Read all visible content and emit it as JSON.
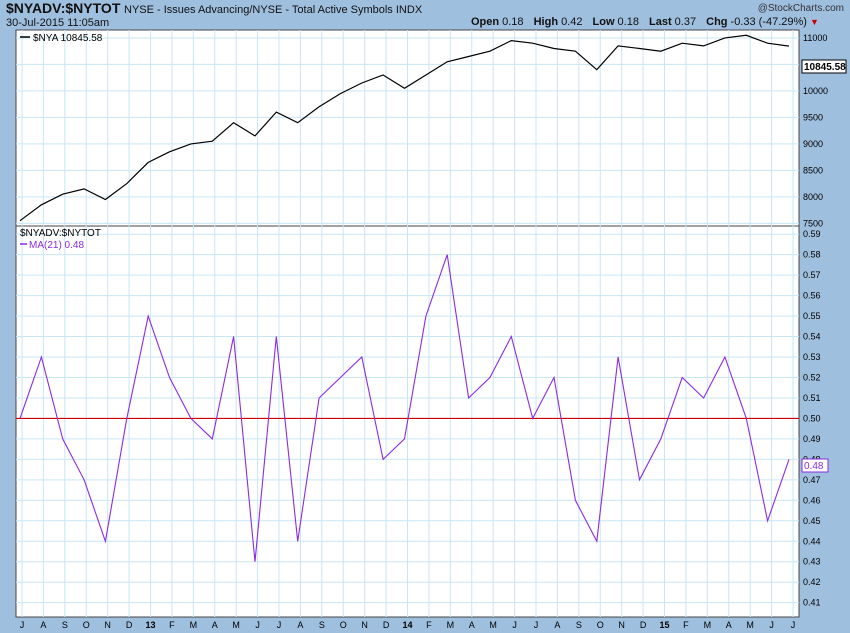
{
  "header": {
    "ticker": "$NYADV:$NYTOT",
    "description": "NYSE - Issues Advancing/NYSE - Total Active Symbols",
    "exchange": "INDX",
    "date": "30-Jul-2015 11:05am",
    "brand": "@StockCharts.com",
    "open_label": "Open",
    "open": "0.18",
    "high_label": "High",
    "high": "0.42",
    "low_label": "Low",
    "low": "0.18",
    "last_label": "Last",
    "last": "0.37",
    "chg_label": "Chg",
    "chg": "-0.33 (-47.29%)"
  },
  "colors": {
    "background": "#9fbfdf",
    "panel": "#ffffff",
    "grid": "#c9e6f5",
    "nya_line": "#000000",
    "ma_line": "#8a2be2",
    "midline": "#cc0000"
  },
  "chart_data": [
    {
      "type": "line",
      "panel": "top",
      "legend": "$NYA 10845.58",
      "series": [
        {
          "name": "$NYA",
          "last_value": "10845.58",
          "points": [
            [
              "2012-07",
              7550
            ],
            [
              "2012-08",
              7850
            ],
            [
              "2012-09",
              8050
            ],
            [
              "2012-10",
              8150
            ],
            [
              "2012-11",
              7950
            ],
            [
              "2012-12",
              8250
            ],
            [
              "2013-01",
              8650
            ],
            [
              "2013-02",
              8850
            ],
            [
              "2013-03",
              9000
            ],
            [
              "2013-04",
              9050
            ],
            [
              "2013-05",
              9400
            ],
            [
              "2013-06",
              9150
            ],
            [
              "2013-07",
              9600
            ],
            [
              "2013-08",
              9400
            ],
            [
              "2013-09",
              9700
            ],
            [
              "2013-10",
              9950
            ],
            [
              "2013-11",
              10150
            ],
            [
              "2013-12",
              10300
            ],
            [
              "2014-01",
              10050
            ],
            [
              "2014-02",
              10300
            ],
            [
              "2014-03",
              10550
            ],
            [
              "2014-04",
              10650
            ],
            [
              "2014-05",
              10750
            ],
            [
              "2014-06",
              10950
            ],
            [
              "2014-07",
              10900
            ],
            [
              "2014-08",
              10800
            ],
            [
              "2014-09",
              10750
            ],
            [
              "2014-10",
              10400
            ],
            [
              "2014-11",
              10850
            ],
            [
              "2014-12",
              10800
            ],
            [
              "2015-01",
              10750
            ],
            [
              "2015-02",
              10900
            ],
            [
              "2015-03",
              10850
            ],
            [
              "2015-04",
              11000
            ],
            [
              "2015-05",
              11050
            ],
            [
              "2015-06",
              10900
            ],
            [
              "2015-07",
              10845.58
            ]
          ]
        }
      ],
      "yticks": [
        "7500",
        "8000",
        "8500",
        "9000",
        "9500",
        "10000",
        "10500",
        "11000"
      ],
      "ylim": [
        7450,
        11150
      ]
    },
    {
      "type": "line",
      "panel": "bottom",
      "legend_title": "$NYADV:$NYTOT",
      "legend_ma": "MA(21) 0.48",
      "series": [
        {
          "name": "MA(21)",
          "last_value": "0.48",
          "points": [
            [
              "2012-07",
              0.5
            ],
            [
              "2012-08",
              0.53
            ],
            [
              "2012-09",
              0.49
            ],
            [
              "2012-10",
              0.47
            ],
            [
              "2012-11",
              0.44
            ],
            [
              "2012-12",
              0.5
            ],
            [
              "2013-01",
              0.55
            ],
            [
              "2013-02",
              0.52
            ],
            [
              "2013-03",
              0.5
            ],
            [
              "2013-04",
              0.49
            ],
            [
              "2013-05",
              0.54
            ],
            [
              "2013-06",
              0.43
            ],
            [
              "2013-07",
              0.54
            ],
            [
              "2013-08",
              0.44
            ],
            [
              "2013-09",
              0.51
            ],
            [
              "2013-10",
              0.52
            ],
            [
              "2013-11",
              0.53
            ],
            [
              "2013-12",
              0.48
            ],
            [
              "2014-01",
              0.49
            ],
            [
              "2014-02",
              0.55
            ],
            [
              "2014-03",
              0.58
            ],
            [
              "2014-04",
              0.51
            ],
            [
              "2014-05",
              0.52
            ],
            [
              "2014-06",
              0.54
            ],
            [
              "2014-07",
              0.5
            ],
            [
              "2014-08",
              0.52
            ],
            [
              "2014-09",
              0.46
            ],
            [
              "2014-10",
              0.44
            ],
            [
              "2014-11",
              0.53
            ],
            [
              "2014-12",
              0.47
            ],
            [
              "2015-01",
              0.49
            ],
            [
              "2015-02",
              0.52
            ],
            [
              "2015-03",
              0.51
            ],
            [
              "2015-04",
              0.53
            ],
            [
              "2015-05",
              0.5
            ],
            [
              "2015-06",
              0.45
            ],
            [
              "2015-07",
              0.48
            ]
          ]
        }
      ],
      "reference_line": 0.5,
      "yticks": [
        "0.41",
        "0.42",
        "0.43",
        "0.44",
        "0.45",
        "0.46",
        "0.47",
        "0.48",
        "0.49",
        "0.50",
        "0.51",
        "0.52",
        "0.53",
        "0.54",
        "0.55",
        "0.56",
        "0.57",
        "0.58",
        "0.59"
      ],
      "ylim": [
        0.403,
        0.594
      ]
    }
  ],
  "x_axis": {
    "labels": [
      "J",
      "A",
      "S",
      "O",
      "N",
      "D",
      "13",
      "F",
      "M",
      "A",
      "M",
      "J",
      "J",
      "A",
      "S",
      "O",
      "N",
      "D",
      "14",
      "F",
      "M",
      "A",
      "M",
      "J",
      "J",
      "A",
      "S",
      "O",
      "N",
      "D",
      "15",
      "F",
      "M",
      "A",
      "M",
      "J",
      "J"
    ],
    "bold_labels": [
      "13",
      "14",
      "15"
    ]
  }
}
